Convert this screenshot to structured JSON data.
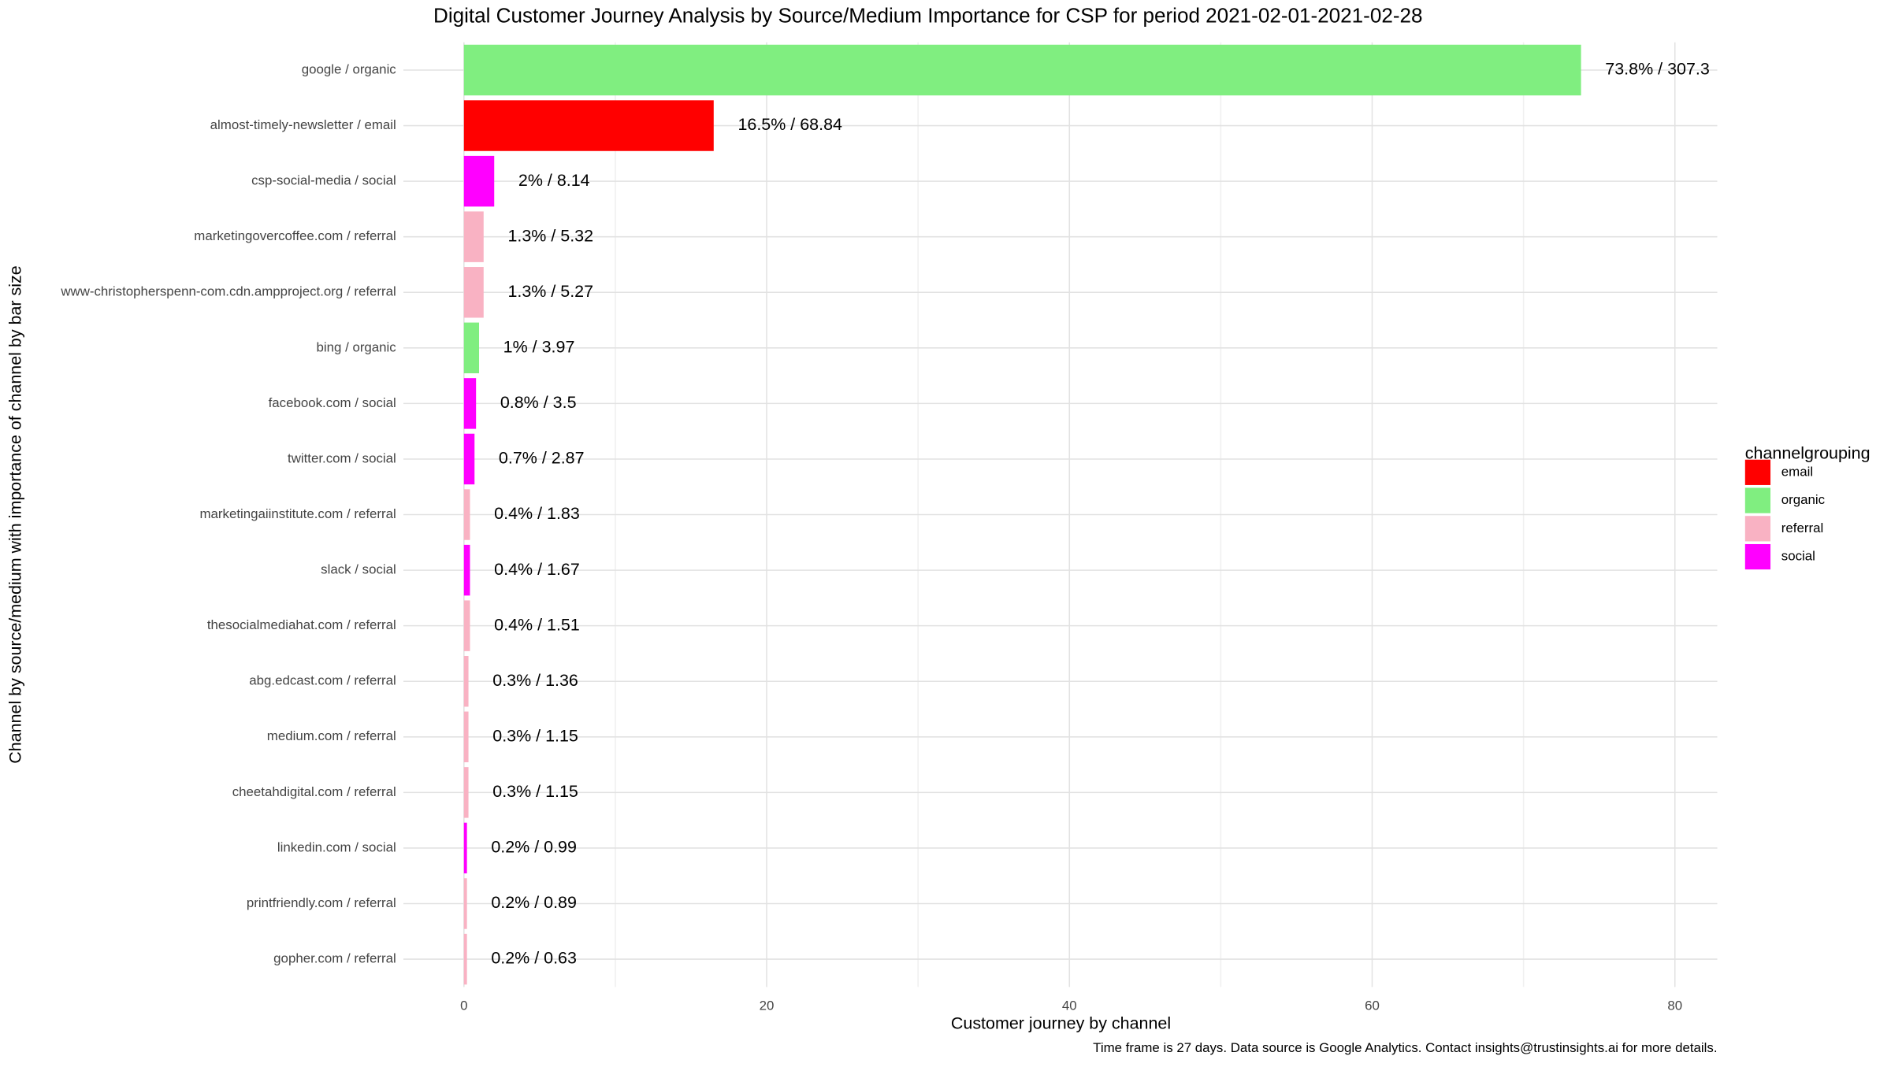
{
  "chart_data": {
    "type": "barh",
    "title": "Digital Customer Journey Analysis by Source/Medium Importance for CSP for period 2021-02-01-2021-02-28",
    "x_label": "Customer journey by channel",
    "y_label": "Channel by source/medium with importance of channel by bar size",
    "caption": "Time frame is 27 days. Data source is Google Analytics. Contact insights@trustinsights.ai for more details.",
    "categories": [
      "google / organic",
      "almost-timely-newsletter / email",
      "csp-social-media / social",
      "marketingovercoffee.com / referral",
      "www-christopherspenn-com.cdn.ampproject.org / referral",
      "bing / organic",
      "facebook.com / social",
      "twitter.com / social",
      "marketingaiinstitute.com / referral",
      "slack / social",
      "thesocialmediahat.com / referral",
      "abg.edcast.com / referral",
      "medium.com / referral",
      "cheetahdigital.com / referral",
      "linkedin.com / social",
      "printfriendly.com / referral",
      "gopher.com / referral"
    ],
    "groups": [
      "organic",
      "email",
      "social",
      "referral",
      "referral",
      "organic",
      "social",
      "social",
      "referral",
      "social",
      "referral",
      "referral",
      "referral",
      "referral",
      "social",
      "referral",
      "referral"
    ],
    "values": [
      73.8,
      16.5,
      2,
      1.3,
      1.3,
      1,
      0.8,
      0.7,
      0.4,
      0.4,
      0.4,
      0.3,
      0.3,
      0.3,
      0.2,
      0.2,
      0.2
    ],
    "value_labels": [
      "73.8% / 307.3",
      "16.5% / 68.84",
      "2% / 8.14",
      "1.3% / 5.32",
      "1.3% / 5.27",
      "1% / 3.97",
      "0.8% / 3.5",
      "0.7% / 2.87",
      "0.4% / 1.83",
      "0.4% / 1.67",
      "0.4% / 1.51",
      "0.3% / 1.36",
      "0.3% / 1.15",
      "0.3% / 1.15",
      "0.2% / 0.99",
      "0.2% / 0.89",
      "0.2% / 0.63"
    ],
    "legend": {
      "title": "channelgrouping",
      "entries": [
        {
          "name": "email",
          "color": "#ff0000"
        },
        {
          "name": "organic",
          "color": "#80ee80"
        },
        {
          "name": "referral",
          "color": "#f9b2c3"
        },
        {
          "name": "social",
          "color": "#ff00ff"
        }
      ]
    },
    "xlim": [
      -4,
      82.8
    ],
    "xticks": [
      0,
      20,
      40,
      60,
      80
    ],
    "xticks_minor": [
      10,
      30,
      50,
      70
    ],
    "grid": true
  }
}
